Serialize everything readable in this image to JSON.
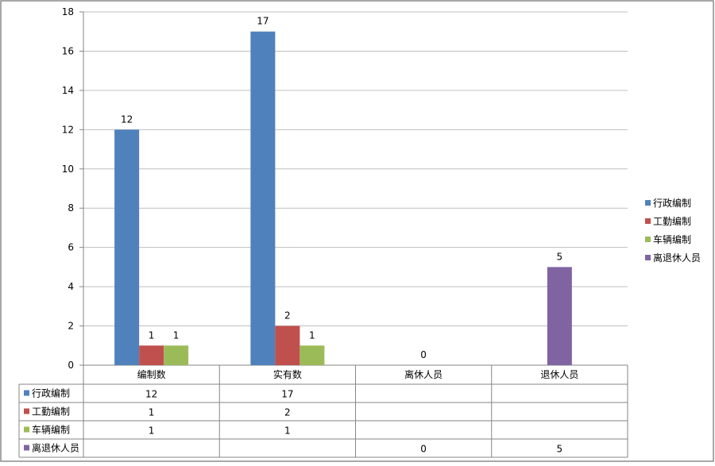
{
  "chart_data": {
    "type": "bar",
    "categories": [
      "编制数",
      "实有数",
      "离休人员",
      "退休人员"
    ],
    "series": [
      {
        "name": "行政编制",
        "color": "#4F81BD",
        "values": [
          12,
          17,
          null,
          null
        ]
      },
      {
        "name": "工勤编制",
        "color": "#C0504D",
        "values": [
          1,
          2,
          null,
          null
        ]
      },
      {
        "name": "车辆编制",
        "color": "#9BBB59",
        "values": [
          1,
          1,
          null,
          null
        ]
      },
      {
        "name": "离退休人员",
        "color": "#8064A2",
        "values": [
          null,
          null,
          0,
          5
        ]
      }
    ],
    "title": "",
    "xlabel": "",
    "ylabel": "",
    "ylim": [
      0,
      18
    ],
    "ytick_step": 2,
    "grid": true,
    "legend": "right",
    "data_table": true
  }
}
